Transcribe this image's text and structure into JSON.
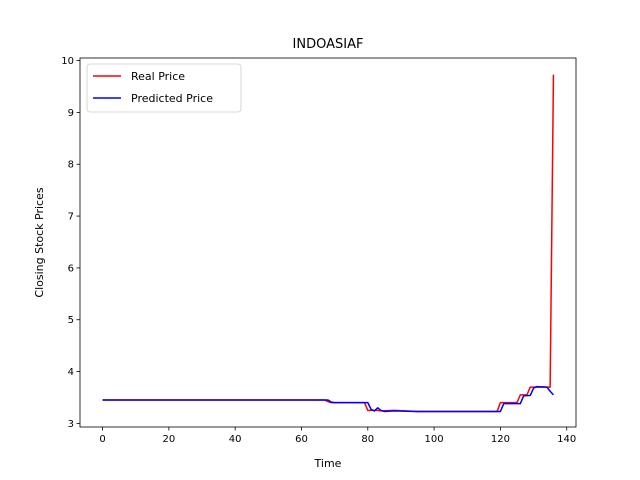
{
  "chart_data": {
    "type": "line",
    "title": "INDOASIAF",
    "xlabel": "Time",
    "ylabel": "Closing Stock Prices",
    "xlim": [
      -6.8,
      142.8
    ],
    "ylim": [
      2.93,
      10.05
    ],
    "xticks": [
      0,
      20,
      40,
      60,
      80,
      100,
      120,
      140
    ],
    "yticks": [
      3,
      4,
      5,
      6,
      7,
      8,
      9,
      10
    ],
    "grid": false,
    "legend_position": "top-left",
    "series": [
      {
        "name": "Real Price",
        "color": "#ff0000",
        "points": [
          [
            0,
            3.45
          ],
          [
            67,
            3.45
          ],
          [
            68,
            3.42
          ],
          [
            69,
            3.4
          ],
          [
            79,
            3.4
          ],
          [
            80,
            3.25
          ],
          [
            83,
            3.25
          ],
          [
            84,
            3.24
          ],
          [
            88,
            3.25
          ],
          [
            95,
            3.23
          ],
          [
            119,
            3.23
          ],
          [
            120,
            3.4
          ],
          [
            125,
            3.4
          ],
          [
            126,
            3.55
          ],
          [
            128,
            3.55
          ],
          [
            129,
            3.7
          ],
          [
            135,
            3.7
          ],
          [
            136,
            9.73
          ]
        ]
      },
      {
        "name": "Predicted Price",
        "color": "#0000ff",
        "points": [
          [
            0,
            3.45
          ],
          [
            68,
            3.45
          ],
          [
            69,
            3.41
          ],
          [
            70,
            3.4
          ],
          [
            80,
            3.4
          ],
          [
            81,
            3.27
          ],
          [
            82,
            3.24
          ],
          [
            83,
            3.3
          ],
          [
            84,
            3.25
          ],
          [
            85,
            3.23
          ],
          [
            88,
            3.24
          ],
          [
            95,
            3.23
          ],
          [
            120,
            3.23
          ],
          [
            121,
            3.38
          ],
          [
            126,
            3.38
          ],
          [
            127,
            3.53
          ],
          [
            129,
            3.54
          ],
          [
            130,
            3.68
          ],
          [
            131,
            3.71
          ],
          [
            134,
            3.7
          ],
          [
            135,
            3.62
          ],
          [
            136,
            3.55
          ]
        ]
      }
    ]
  }
}
